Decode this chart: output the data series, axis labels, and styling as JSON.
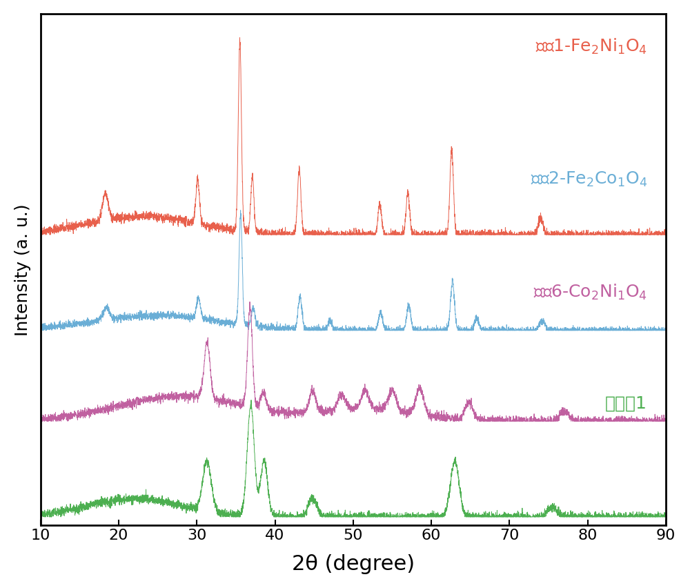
{
  "colors": {
    "red": "#E8604C",
    "blue": "#6AAED6",
    "magenta": "#C060A0",
    "green": "#4CAF50"
  },
  "xlabel": "2θ (degree)",
  "ylabel": "Intensity (a. u.)",
  "xlim": [
    10,
    90
  ],
  "xticks": [
    10,
    20,
    30,
    40,
    50,
    60,
    70,
    80,
    90
  ],
  "offsets": [
    2.8,
    1.85,
    0.95,
    0.0
  ],
  "background": "#ffffff",
  "noise_seed": 42,
  "label_fontsize": 18,
  "tick_fontsize": 16,
  "xlabel_fontsize": 22
}
